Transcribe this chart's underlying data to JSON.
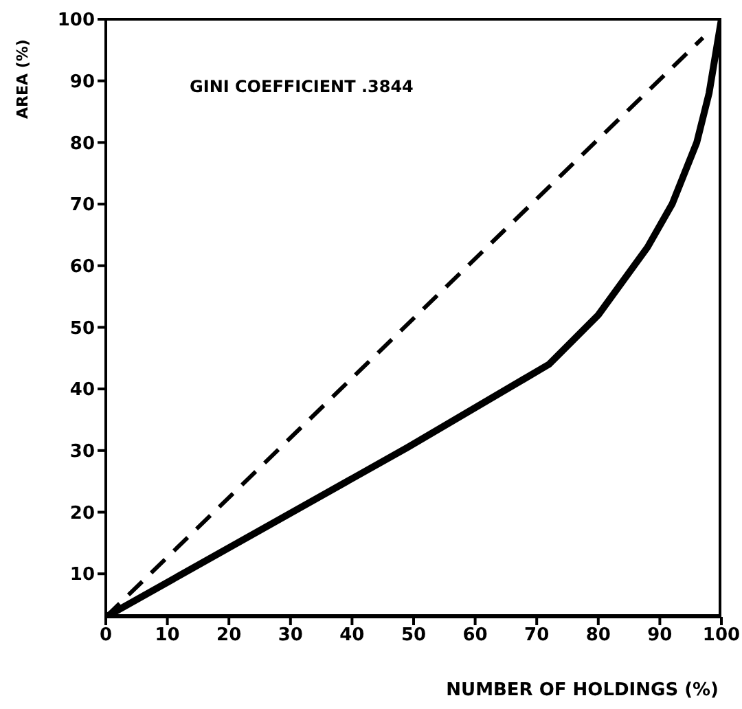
{
  "chart_data": {
    "type": "line",
    "xlabel": "NUMBER OF HOLDINGS (%)",
    "ylabel": "AREA (%)",
    "annotations": [
      "GINI COEFFICIENT .3844"
    ],
    "xlim": [
      0,
      100
    ],
    "ylim": [
      3,
      100
    ],
    "xticks": [
      0,
      10,
      20,
      30,
      40,
      50,
      60,
      70,
      80,
      90,
      100
    ],
    "yticks": [
      10,
      20,
      30,
      40,
      50,
      60,
      70,
      80,
      90,
      100
    ],
    "marker": "none",
    "series": [
      {
        "color": "#000000",
        "line_style": "solid",
        "x": [
          0,
          49,
          72,
          80,
          88,
          92,
          96,
          98,
          100
        ],
        "values": [
          3,
          30.5,
          44,
          52,
          63,
          70,
          80,
          88,
          100
        ]
      },
      {
        "color": "#000000",
        "line_style": "dashed",
        "x": [
          0,
          97
        ],
        "values": [
          3,
          97
        ]
      }
    ]
  }
}
